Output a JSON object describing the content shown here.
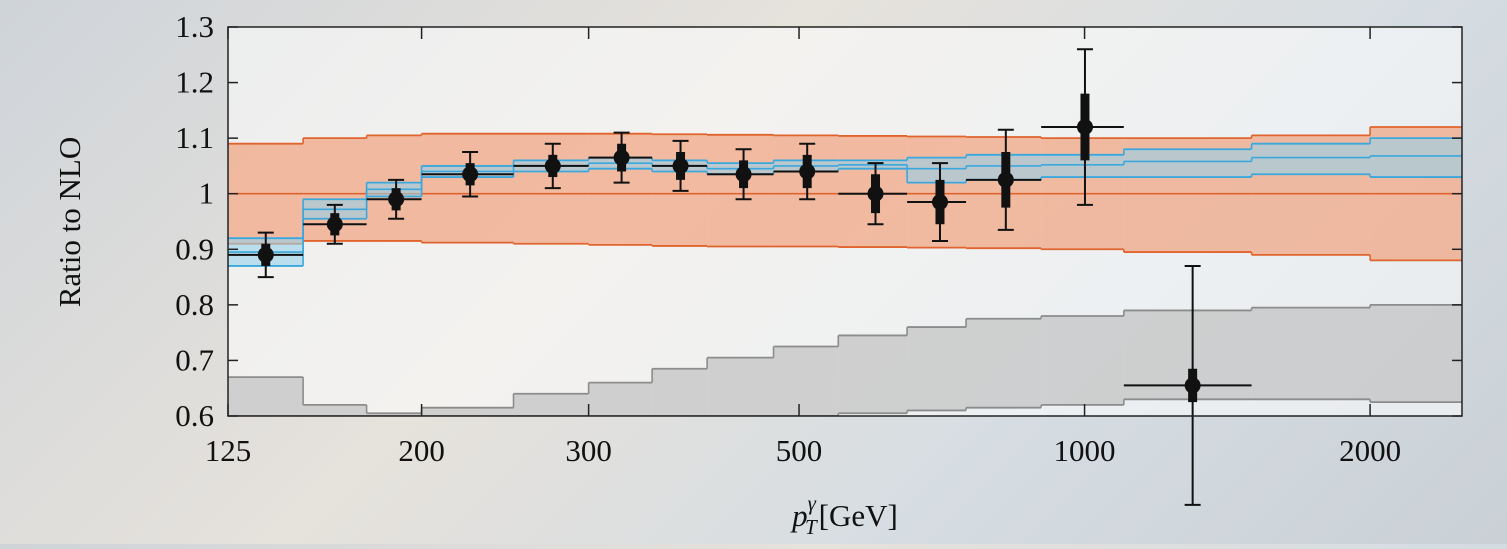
{
  "chart_data": {
    "type": "ratio-bands",
    "y_label": "Ratio to NLO",
    "x_label": {
      "main": "p",
      "sub": "T",
      "sup": "γ",
      "unit": "[GeV]"
    },
    "xlim": [
      125,
      2500
    ],
    "xscale": "log",
    "xticks": [
      125,
      200,
      300,
      500,
      1000,
      2000
    ],
    "ylim": [
      0.6,
      1.3
    ],
    "yticks": [
      0.6,
      0.7,
      0.8,
      0.9,
      1,
      1.1,
      1.2,
      1.3
    ],
    "bins": [
      125,
      150,
      175,
      200,
      250,
      300,
      350,
      400,
      470,
      550,
      650,
      750,
      900,
      1100,
      1500,
      2000,
      2500
    ],
    "bands": [
      {
        "color": "#e0642e",
        "fill": "rgba(240,140,95,0.55)",
        "central": [
          1,
          1,
          1,
          1,
          1,
          1,
          1,
          1,
          1,
          1,
          1,
          1,
          1,
          1,
          1,
          1
        ],
        "low": [
          0.91,
          0.915,
          0.915,
          0.912,
          0.91,
          0.908,
          0.906,
          0.905,
          0.905,
          0.904,
          0.903,
          0.902,
          0.9,
          0.895,
          0.89,
          0.88
        ],
        "high": [
          1.09,
          1.1,
          1.105,
          1.108,
          1.108,
          1.108,
          1.107,
          1.106,
          1.105,
          1.104,
          1.103,
          1.102,
          1.1,
          1.1,
          1.105,
          1.12
        ]
      },
      {
        "color": "#3aa8dd",
        "fill": "rgba(150,210,235,0.6)",
        "central": [
          0.895,
          0.972,
          1.008,
          1.04,
          1.05,
          1.055,
          1.05,
          1.045,
          1.05,
          1.052,
          1.045,
          1.05,
          1.052,
          1.058,
          1.065,
          1.068
        ],
        "low": [
          0.87,
          0.955,
          0.995,
          1.03,
          1.04,
          1.045,
          1.04,
          1.035,
          1.04,
          1.045,
          1.02,
          1.025,
          1.03,
          1.03,
          1.035,
          1.03
        ],
        "high": [
          0.92,
          0.99,
          1.02,
          1.05,
          1.06,
          1.065,
          1.06,
          1.055,
          1.06,
          1.06,
          1.065,
          1.07,
          1.07,
          1.08,
          1.09,
          1.1
        ]
      },
      {
        "color": "#8c8c8c",
        "fill": "rgba(185,185,185,0.6)",
        "low": [
          0.6,
          0.6,
          0.6,
          0.6,
          0.6,
          0.6,
          0.6,
          0.6,
          0.6,
          0.605,
          0.61,
          0.615,
          0.62,
          0.63,
          0.63,
          0.625
        ],
        "high": [
          0.67,
          0.62,
          0.605,
          0.615,
          0.64,
          0.66,
          0.685,
          0.705,
          0.725,
          0.745,
          0.76,
          0.775,
          0.78,
          0.79,
          0.795,
          0.8
        ]
      }
    ],
    "points": {
      "color": "#111111",
      "x": [
        137,
        162,
        188,
        225,
        275,
        325,
        375,
        437,
        510,
        602,
        704,
        826,
        1001,
        1300
      ],
      "values": [
        0.89,
        0.945,
        0.99,
        1.035,
        1.05,
        1.065,
        1.05,
        1.035,
        1.04,
        1.0,
        0.985,
        1.025,
        1.12,
        0.655
      ],
      "errors": [
        0.04,
        0.035,
        0.035,
        0.04,
        0.04,
        0.045,
        0.045,
        0.045,
        0.05,
        0.055,
        0.07,
        0.09,
        0.14,
        0.215
      ],
      "stat_errors": [
        0.02,
        0.02,
        0.02,
        0.02,
        0.02,
        0.025,
        0.025,
        0.025,
        0.03,
        0.035,
        0.04,
        0.05,
        0.06,
        0.03
      ]
    }
  }
}
